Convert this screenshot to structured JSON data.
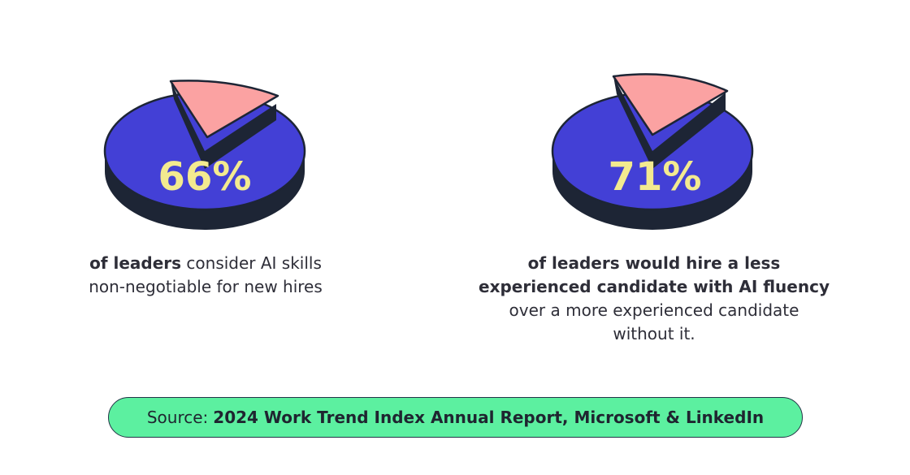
{
  "colors": {
    "pie_main": "#4340d6",
    "pie_slice": "#fba2a2",
    "pie_outline": "#1d2535",
    "percent_text": "#f3ea8f",
    "source_fill": "#5cf0a0"
  },
  "chart_data": [
    {
      "type": "pie",
      "highlight_value": 66,
      "label": "66%",
      "caption_bold": "of leaders",
      "caption_rest_1": "consider AI skills",
      "caption_rest_2": "non-negotiable for new hires"
    },
    {
      "type": "pie",
      "highlight_value": 71,
      "label": "71%",
      "caption_bold_1": "of leaders would hire a less",
      "caption_bold_2": "experienced candidate with AI fluency",
      "caption_rest_1": "over a more experienced candidate",
      "caption_rest_2": "without it."
    }
  ],
  "source": {
    "prefix": "Source:",
    "title": "2024 Work Trend Index Annual Report, Microsoft & LinkedIn"
  }
}
